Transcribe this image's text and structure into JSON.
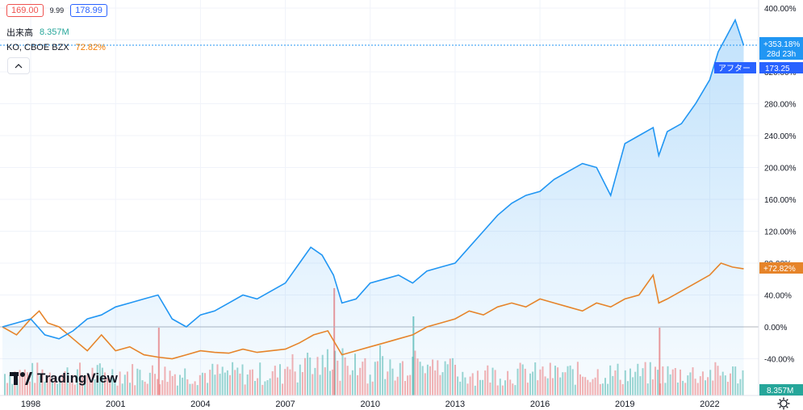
{
  "legend": {
    "price_low": "169.00",
    "price_step": "9.99",
    "price_high": "178.99",
    "volume_label": "出来高",
    "volume_value": "8.357M",
    "compare_label": "KO, CBOE BZX",
    "compare_value": "72.82%"
  },
  "badges": {
    "main_pct": "+353.18%",
    "main_countdown": "28d 23h",
    "after_label": "アフター",
    "after_price": "173.25",
    "compare_pct": "+72.82%",
    "volume": "8.357M"
  },
  "logo": {
    "text": "TradingView"
  },
  "colors": {
    "main": "#2196f3",
    "compare": "#e6842a",
    "vol_up": "#26a69a",
    "vol_down": "#ef5350"
  },
  "chart_data": {
    "type": "line",
    "x_tick_labels": [
      "1998",
      "2001",
      "2004",
      "2007",
      "2010",
      "2013",
      "2016",
      "2019",
      "2022"
    ],
    "y_tick_labels": [
      "400.00%",
      "360.00%",
      "320.00%",
      "280.00%",
      "240.00%",
      "200.00%",
      "160.00%",
      "120.00%",
      "80.00%",
      "40.00%",
      "0.00%",
      "-40.00%"
    ],
    "ylim": [
      -80,
      400
    ],
    "grid": true,
    "series": [
      {
        "x": [
          1997.0,
          1997.5,
          1998.0,
          1998.5,
          1999.0,
          1999.5,
          2000.0,
          2000.5,
          2001.0,
          2001.5,
          2002.0,
          2002.5,
          2003.0,
          2003.5,
          2004.0,
          2004.5,
          2005.0,
          2005.5,
          2006.0,
          2006.5,
          2007.0,
          2007.5,
          2007.9,
          2008.3,
          2008.7,
          2009.0,
          2009.5,
          2010.0,
          2010.5,
          2011.0,
          2011.5,
          2012.0,
          2012.5,
          2013.0,
          2013.5,
          2014.0,
          2014.5,
          2015.0,
          2015.5,
          2016.0,
          2016.5,
          2017.0,
          2017.5,
          2018.0,
          2018.5,
          2019.0,
          2019.5,
          2020.0,
          2020.2,
          2020.5,
          2021.0,
          2021.5,
          2022.0,
          2022.3,
          2022.6,
          2022.9,
          2023.2
        ],
        "values": [
          0,
          5,
          10,
          -10,
          -15,
          -5,
          10,
          15,
          25,
          30,
          35,
          40,
          10,
          0,
          15,
          20,
          30,
          40,
          35,
          45,
          55,
          80,
          100,
          90,
          65,
          30,
          35,
          55,
          60,
          65,
          55,
          70,
          75,
          80,
          100,
          120,
          140,
          155,
          165,
          170,
          185,
          195,
          205,
          200,
          165,
          230,
          240,
          250,
          215,
          245,
          255,
          280,
          310,
          345,
          365,
          385,
          353.18
        ]
      },
      {
        "x": [
          1997.0,
          1997.5,
          1998.0,
          1998.3,
          1998.6,
          1999.0,
          1999.5,
          2000.0,
          2000.5,
          2001.0,
          2001.5,
          2002.0,
          2002.5,
          2003.0,
          2003.5,
          2004.0,
          2004.5,
          2005.0,
          2005.5,
          2006.0,
          2006.5,
          2007.0,
          2007.5,
          2008.0,
          2008.5,
          2009.0,
          2009.5,
          2010.0,
          2010.5,
          2011.0,
          2011.5,
          2012.0,
          2012.5,
          2013.0,
          2013.5,
          2014.0,
          2014.5,
          2015.0,
          2015.5,
          2016.0,
          2016.5,
          2017.0,
          2017.5,
          2018.0,
          2018.5,
          2019.0,
          2019.5,
          2020.0,
          2020.2,
          2020.5,
          2021.0,
          2021.5,
          2022.0,
          2022.4,
          2022.8,
          2023.2
        ],
        "values": [
          0,
          -10,
          10,
          20,
          5,
          0,
          -15,
          -30,
          -10,
          -30,
          -25,
          -35,
          -38,
          -40,
          -35,
          -30,
          -32,
          -33,
          -28,
          -32,
          -30,
          -28,
          -20,
          -10,
          -5,
          -35,
          -30,
          -25,
          -20,
          -15,
          -10,
          0,
          5,
          10,
          20,
          15,
          25,
          30,
          25,
          35,
          30,
          25,
          20,
          30,
          25,
          35,
          40,
          65,
          30,
          35,
          45,
          55,
          65,
          80,
          75,
          72.82
        ]
      }
    ],
    "volume": {
      "last": "8.357M",
      "spikes": [
        {
          "x": 2008.7,
          "rel": 0.95,
          "up": false
        },
        {
          "x": 2011.5,
          "rel": 0.7,
          "up": true
        },
        {
          "x": 2020.2,
          "rel": 0.6,
          "up": false
        },
        {
          "x": 2002.5,
          "rel": 0.6,
          "up": false
        }
      ]
    }
  }
}
